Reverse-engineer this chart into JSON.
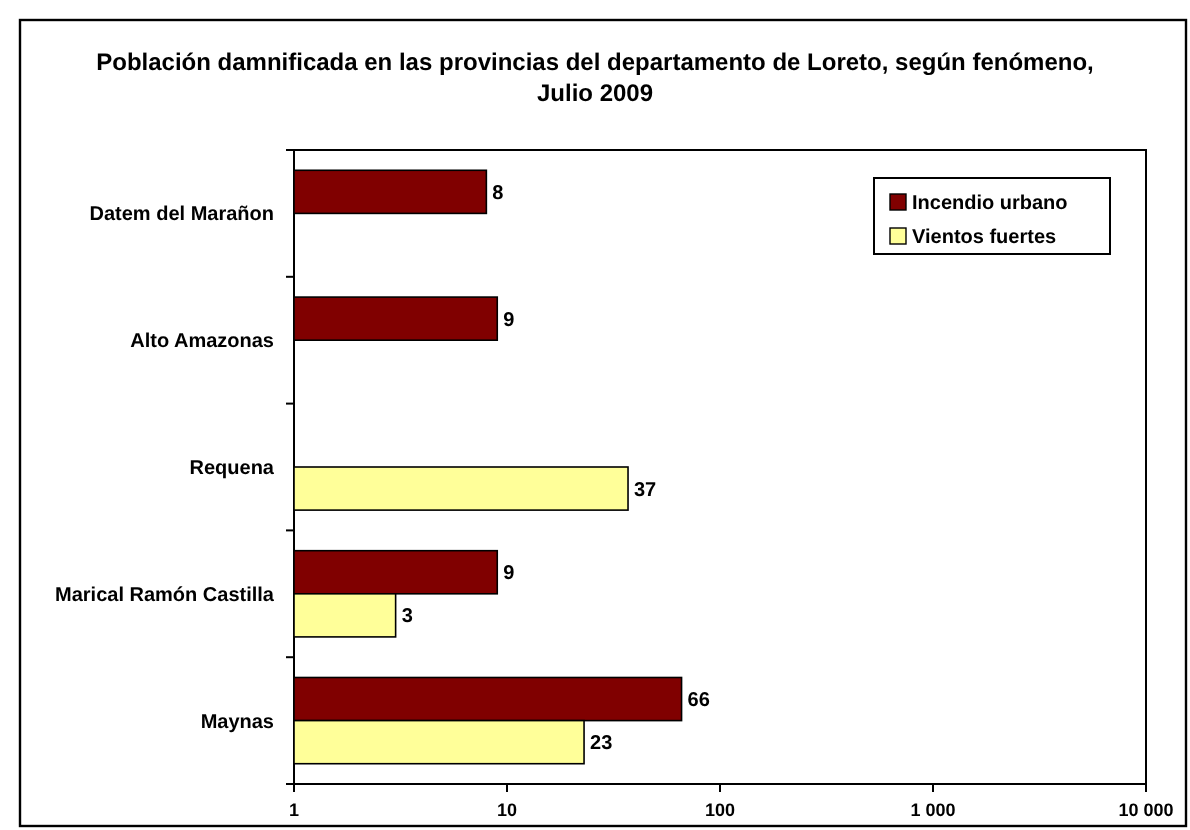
{
  "chart_data": {
    "type": "bar",
    "orientation": "horizontal",
    "title": "Población damnificada en las provincias del departamento de Loreto, según fenómeno, Julio 2009",
    "categories": [
      "Datem del Marañon",
      "Alto Amazonas",
      "Requena",
      "Marical Ramón Castilla",
      "Maynas"
    ],
    "series": [
      {
        "name": "Incendio urbano",
        "color": "#800000",
        "values": [
          8,
          9,
          null,
          9,
          66
        ]
      },
      {
        "name": "Vientos fuertes",
        "color": "#ffff99",
        "values": [
          null,
          null,
          37,
          3,
          23
        ]
      }
    ],
    "log": "x",
    "xlim": [
      1,
      10000
    ],
    "xticks": [
      1,
      10,
      100,
      {
        "value": 1000,
        "label": "1 000"
      },
      {
        "value": 10000,
        "label": "10 000"
      }
    ],
    "data_labels": true,
    "legend": "top right",
    "grid": false
  }
}
